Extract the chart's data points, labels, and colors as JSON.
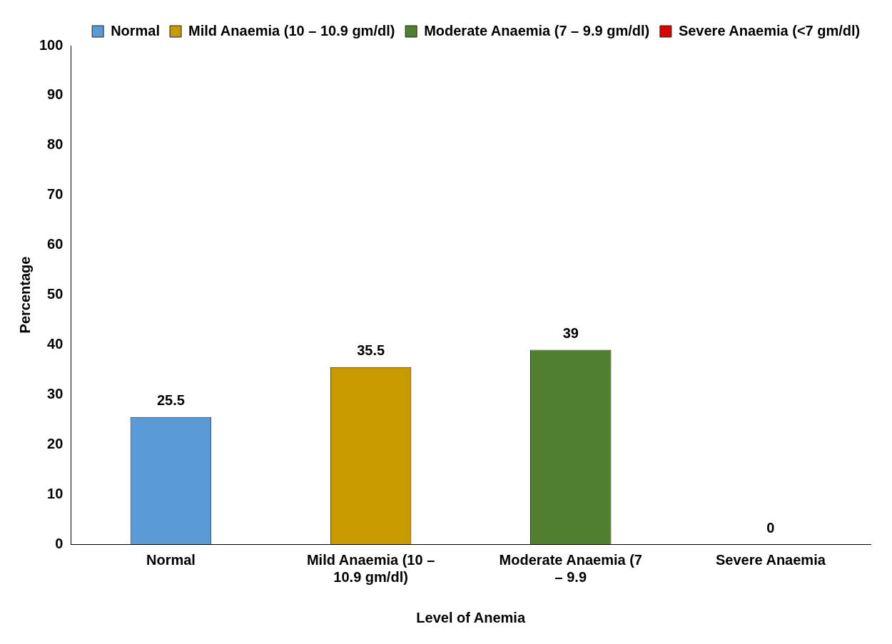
{
  "chart_data": {
    "type": "bar",
    "xlabel": "Level of Anemia",
    "ylabel": "Percentage",
    "categories": [
      "Normal",
      "Mild Anaemia (10 – 10.9 gm/dl)",
      "Moderate Anaemia (7 – 9.9",
      "Severe Anaemia"
    ],
    "series": [
      {
        "name": "Normal",
        "color": "#5b9bd5",
        "values": [
          25.5,
          null,
          null,
          null
        ]
      },
      {
        "name": "Mild Anaemia (10 – 10.9 gm/dl)",
        "color": "#c89a00",
        "values": [
          null,
          35.5,
          null,
          null
        ]
      },
      {
        "name": "Moderate Anaemia (7 – 9.9 gm/dl)",
        "color": "#4f7f2f",
        "values": [
          null,
          null,
          39,
          null
        ]
      },
      {
        "name": "Severe Anaemia (<7 gm/dl)",
        "color": "#e00000",
        "values": [
          null,
          null,
          null,
          0
        ]
      }
    ],
    "ylim": [
      0,
      100
    ],
    "yticks": [
      0,
      10,
      20,
      30,
      40,
      50,
      60,
      70,
      80,
      90,
      100
    ],
    "grid": false,
    "legend": "top right",
    "data_labels": true
  }
}
